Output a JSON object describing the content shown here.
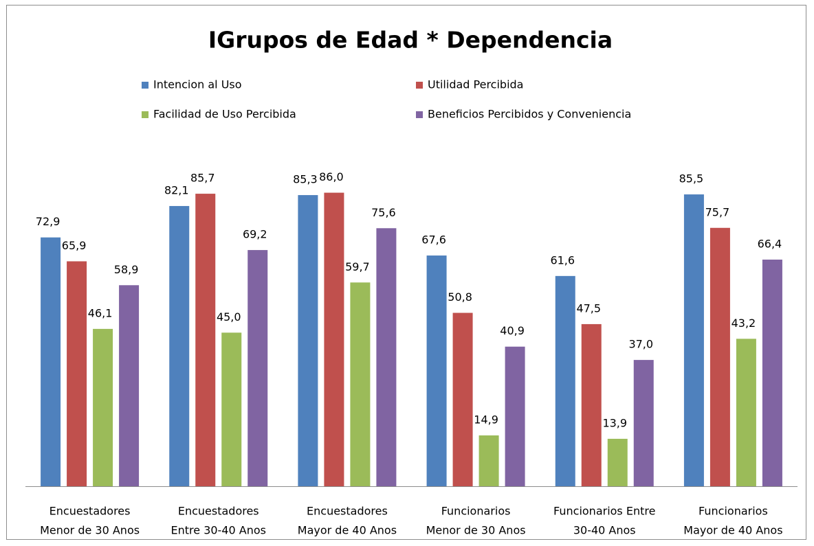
{
  "chart_data": {
    "type": "bar",
    "title": "IGrupos de Edad  * Dependencia",
    "categories": [
      [
        "Encuestadores",
        "Menor de 30 Anos"
      ],
      [
        "Encuestadores",
        "Entre 30-40 Anos"
      ],
      [
        "Encuestadores",
        "Mayor de 40 Anos"
      ],
      [
        "Funcionarios",
        "Menor de 30 Anos"
      ],
      [
        "Funcionarios Entre",
        "30-40 Anos"
      ],
      [
        "Funcionarios",
        "Mayor de 40 Anos"
      ]
    ],
    "series": [
      {
        "name": "Intencion al Uso",
        "color": "#4f81bd",
        "values": [
          72.9,
          82.1,
          85.3,
          67.6,
          61.6,
          85.5
        ],
        "value_labels": [
          "72,9",
          "82,1",
          "85,3",
          "67,6",
          "61,6",
          "85,5"
        ]
      },
      {
        "name": "Utilidad Percibida",
        "color": "#c0504d",
        "values": [
          65.9,
          85.7,
          86.0,
          50.8,
          47.5,
          75.7
        ],
        "value_labels": [
          "65,9",
          "85,7",
          "86,0",
          "50,8",
          "47,5",
          "75,7"
        ]
      },
      {
        "name": "Facilidad de Uso Percibida",
        "color": "#9bbb59",
        "values": [
          46.1,
          45.0,
          59.7,
          14.9,
          13.9,
          43.2
        ],
        "value_labels": [
          "46,1",
          "45,0",
          "59,7",
          "14,9",
          "13,9",
          "43,2"
        ]
      },
      {
        "name": "Beneficios Percibidos y Conveniencia",
        "color": "#8064a2",
        "values": [
          58.9,
          69.2,
          75.6,
          40.9,
          37.0,
          66.4
        ],
        "value_labels": [
          "58,9",
          "69,2",
          "75,6",
          "40,9",
          "37,0",
          "66,4"
        ]
      }
    ],
    "ylim": [
      0,
      100
    ],
    "legend": "top"
  }
}
